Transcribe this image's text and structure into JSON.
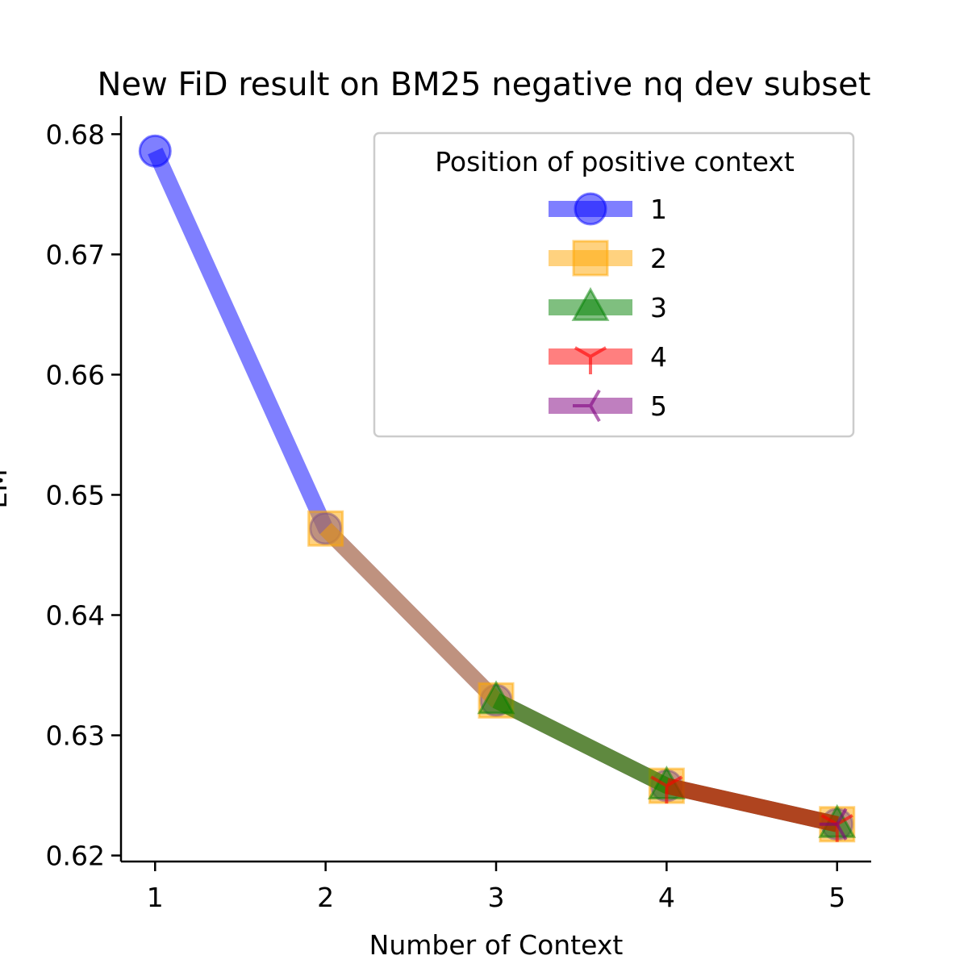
{
  "chart_data": {
    "type": "line",
    "title": "New FiD result on BM25 negative nq dev subset",
    "xlabel": "Number of Context",
    "ylabel": "EM",
    "xlim": [
      0.8,
      5.2
    ],
    "ylim": [
      0.6195,
      0.6815
    ],
    "xticks": [
      1,
      2,
      3,
      4,
      5
    ],
    "yticks": [
      0.62,
      0.63,
      0.64,
      0.65,
      0.66,
      0.67,
      0.68
    ],
    "ytick_labels": [
      "0.62",
      "0.63",
      "0.64",
      "0.65",
      "0.66",
      "0.67",
      "0.68"
    ],
    "grid": false,
    "legend": {
      "title": "Position of positive context",
      "placement": "top-right"
    },
    "series": [
      {
        "name": "1",
        "color": "#0000ff",
        "marker": "circle",
        "x": [
          1,
          2,
          3,
          4,
          5
        ],
        "values": [
          0.6786,
          0.6472,
          0.6329,
          0.6258,
          0.6226
        ]
      },
      {
        "name": "2",
        "color": "#ffa500",
        "marker": "square",
        "x": [
          2,
          3,
          4,
          5
        ],
        "values": [
          0.6472,
          0.6329,
          0.6258,
          0.6226
        ]
      },
      {
        "name": "3",
        "color": "#008000",
        "marker": "triangle",
        "x": [
          3,
          4,
          5
        ],
        "values": [
          0.6329,
          0.6258,
          0.6226
        ]
      },
      {
        "name": "4",
        "color": "#ff0000",
        "marker": "tri-down",
        "x": [
          4,
          5
        ],
        "values": [
          0.6258,
          0.6226
        ]
      },
      {
        "name": "5",
        "color": "#800080",
        "marker": "tri-left",
        "x": [
          5
        ],
        "values": [
          0.6226
        ]
      }
    ]
  }
}
